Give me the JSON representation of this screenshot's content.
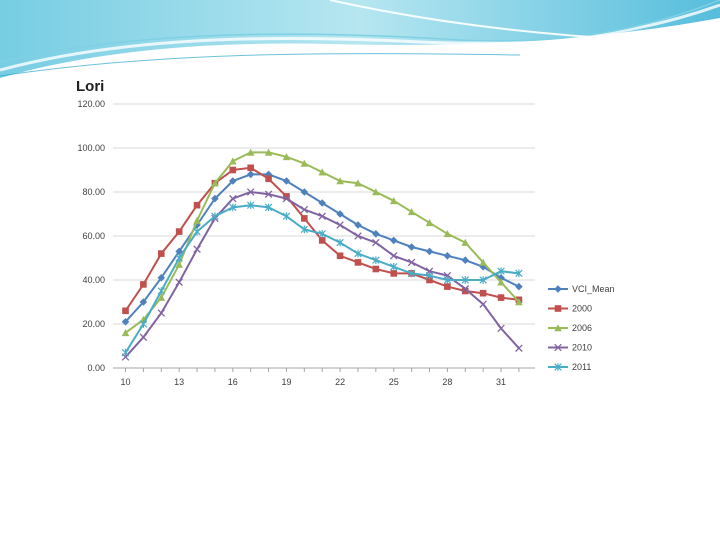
{
  "chart_data": {
    "type": "line",
    "title": "Lori",
    "xlabel": "",
    "ylabel": "",
    "ylim": [
      0,
      120
    ],
    "yticks": [
      "120.00",
      "100.00",
      "80.00",
      "60.00",
      "40.00",
      "20.00",
      "0.00"
    ],
    "xticks": [
      "10",
      "13",
      "16",
      "19",
      "22",
      "25",
      "28",
      "31"
    ],
    "x": [
      10,
      11,
      12,
      13,
      14,
      15,
      16,
      17,
      18,
      19,
      20,
      21,
      22,
      23,
      24,
      25,
      26,
      27,
      28,
      29,
      30,
      31,
      32
    ],
    "legend_position": "right",
    "series": [
      {
        "name": "VCI_Mean",
        "color": "#4F81BD",
        "marker": "diamond",
        "values": [
          21,
          30,
          41,
          53,
          65,
          77,
          85,
          88,
          88,
          85,
          80,
          75,
          70,
          65,
          61,
          58,
          55,
          53,
          51,
          49,
          46,
          41,
          37
        ]
      },
      {
        "name": "2000",
        "color": "#C0504D",
        "marker": "square",
        "values": [
          26,
          38,
          52,
          62,
          74,
          84,
          90,
          91,
          86,
          78,
          68,
          58,
          51,
          48,
          45,
          43,
          43,
          40,
          37,
          35,
          34,
          32,
          31
        ]
      },
      {
        "name": "2006",
        "color": "#9BBB59",
        "marker": "triangle",
        "values": [
          16,
          22,
          32,
          47,
          67,
          84,
          94,
          98,
          98,
          96,
          93,
          89,
          85,
          84,
          80,
          76,
          71,
          66,
          61,
          57,
          48,
          39,
          30
        ]
      },
      {
        "name": "2010",
        "color": "#8064A2",
        "marker": "x",
        "values": [
          5,
          14,
          25,
          39,
          54,
          68,
          77,
          80,
          79,
          77,
          72,
          69,
          65,
          60,
          57,
          51,
          48,
          44,
          42,
          36,
          29,
          18,
          9
        ]
      },
      {
        "name": "2011",
        "color": "#4BACC6",
        "marker": "star",
        "values": [
          7,
          20,
          35,
          50,
          62,
          69,
          73,
          74,
          73,
          69,
          63,
          61,
          57,
          52,
          49,
          46,
          43,
          42,
          40,
          40,
          40,
          44,
          43
        ]
      }
    ]
  }
}
